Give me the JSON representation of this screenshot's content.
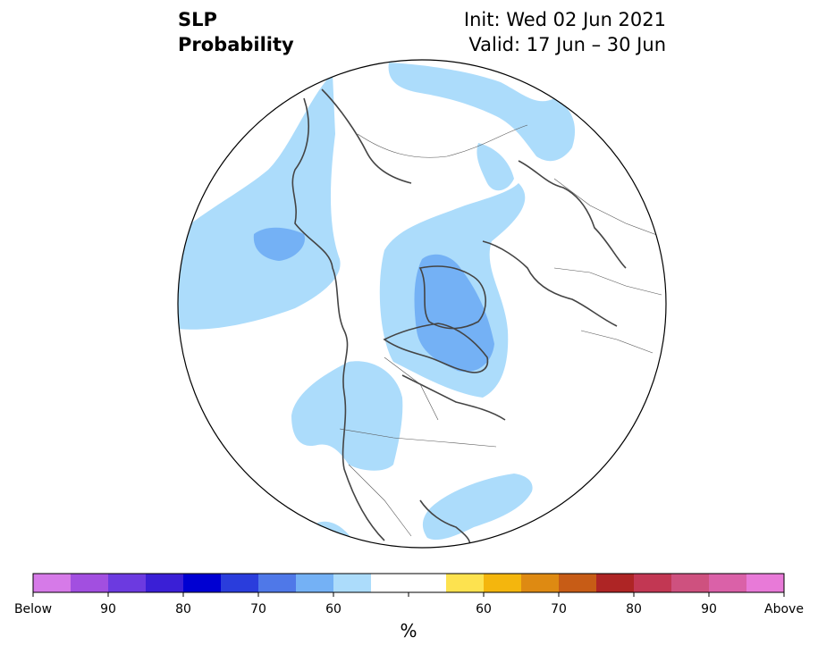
{
  "header": {
    "title_line1": "SLP",
    "title_line2": "Probability",
    "init": "Init: Wed 02 Jun 2021",
    "valid": "Valid: 17 Jun – 30 Jun"
  },
  "map": {
    "projection": "north-polar-stereographic",
    "background_color": "#ffffff",
    "land_outline_color": "#444444",
    "regions": [
      {
        "name": "north-pacific-below",
        "category": "Below 60",
        "color": "#acdcfb"
      },
      {
        "name": "pacific-core-below",
        "category": "Below 70",
        "color": "#74b1f5"
      },
      {
        "name": "greenland-below",
        "category": "Below 60",
        "color": "#acdcfb"
      },
      {
        "name": "greenland-core-below",
        "category": "Below 70",
        "color": "#74b1f5"
      },
      {
        "name": "canada-below",
        "category": "Below 60",
        "color": "#acdcfb"
      },
      {
        "name": "atlantic-below",
        "category": "Below 60",
        "color": "#acdcfb"
      },
      {
        "name": "europe-russia-below",
        "category": "Below 60",
        "color": "#acdcfb"
      }
    ]
  },
  "colorbar": {
    "colors": [
      "#d67ae8",
      "#a24fe0",
      "#6c3ae0",
      "#3a1fd6",
      "#0000d2",
      "#2a3ddc",
      "#4f78e8",
      "#74b1f5",
      "#acdcfb",
      "#ffffff",
      "#ffffff",
      "#fde24f",
      "#f4b60d",
      "#de8a12",
      "#c75c16",
      "#ae2525",
      "#c23753",
      "#ce517f",
      "#da61a8",
      "#e87ad8"
    ],
    "tick_labels": [
      "Below",
      "90",
      "80",
      "70",
      "60",
      "60",
      "70",
      "80",
      "90",
      "Above"
    ],
    "unit": "%"
  }
}
